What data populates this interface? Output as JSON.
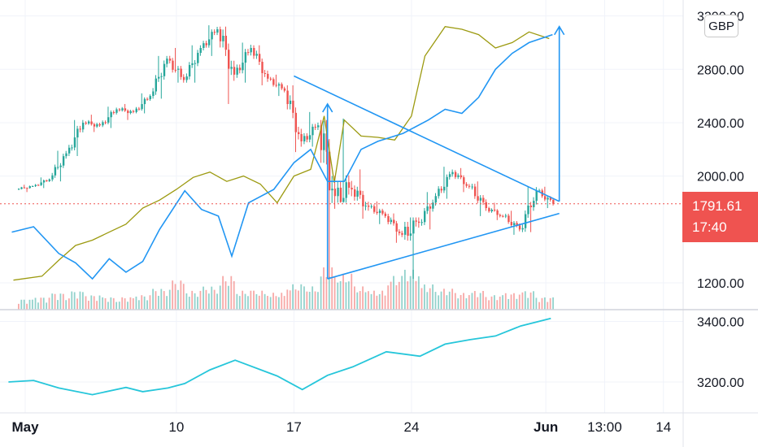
{
  "currency": "GBP",
  "last_price": {
    "value": "1791.61",
    "countdown": "17:40",
    "price": 1791.61
  },
  "colors": {
    "up": "#26a69a",
    "down": "#ef5350",
    "oscillator": "#2196f3",
    "olive": "#9c9a10",
    "trendline": "#2196f3",
    "lower_line": "#26c6da"
  },
  "chart_data": [
    {
      "type": "candlestick",
      "title": "",
      "price_axis": [
        {
          "label": "3200.00",
          "value": 3200,
          "partial": true
        },
        {
          "label": "2800.00",
          "value": 2800
        },
        {
          "label": "2400.00",
          "value": 2400
        },
        {
          "label": "2000.00",
          "value": 2000
        },
        {
          "label": "1200.00",
          "value": 1200
        }
      ],
      "time_axis": [
        {
          "label": "May",
          "day": 1,
          "bold": true
        },
        {
          "label": "10",
          "day": 10
        },
        {
          "label": "17",
          "day": 17
        },
        {
          "label": "24",
          "day": 24
        },
        {
          "label": "Jun",
          "day": 32,
          "bold": true
        },
        {
          "label": "13:00",
          "day": 35.5
        },
        {
          "label": "14",
          "day": 39
        }
      ],
      "candles": [
        {
          "day": 1,
          "o": 1900,
          "h": 1935,
          "l": 1880,
          "c": 1925
        },
        {
          "day": 2,
          "o": 1925,
          "h": 1990,
          "l": 1910,
          "c": 1975
        },
        {
          "day": 3,
          "o": 1975,
          "h": 2190,
          "l": 1960,
          "c": 2170
        },
        {
          "day": 4,
          "o": 2170,
          "h": 2420,
          "l": 2150,
          "c": 2400
        },
        {
          "day": 5,
          "o": 2400,
          "h": 2460,
          "l": 2330,
          "c": 2380
        },
        {
          "day": 6,
          "o": 2380,
          "h": 2520,
          "l": 2360,
          "c": 2500
        },
        {
          "day": 7,
          "o": 2500,
          "h": 2540,
          "l": 2420,
          "c": 2480
        },
        {
          "day": 8,
          "o": 2480,
          "h": 2620,
          "l": 2470,
          "c": 2600
        },
        {
          "day": 9,
          "o": 2600,
          "h": 2900,
          "l": 2580,
          "c": 2880
        },
        {
          "day": 10,
          "o": 2880,
          "h": 2960,
          "l": 2700,
          "c": 2720
        },
        {
          "day": 11,
          "o": 2720,
          "h": 2980,
          "l": 2700,
          "c": 2960
        },
        {
          "day": 12,
          "o": 2960,
          "h": 3130,
          "l": 2900,
          "c": 3100
        },
        {
          "day": 13,
          "o": 3100,
          "h": 3120,
          "l": 2540,
          "c": 2760
        },
        {
          "day": 14,
          "o": 2760,
          "h": 3000,
          "l": 2700,
          "c": 2960
        },
        {
          "day": 15,
          "o": 2960,
          "h": 2980,
          "l": 2680,
          "c": 2730
        },
        {
          "day": 16,
          "o": 2730,
          "h": 2760,
          "l": 2600,
          "c": 2640
        },
        {
          "day": 17,
          "o": 2640,
          "h": 2680,
          "l": 2180,
          "c": 2260
        },
        {
          "day": 18,
          "o": 2260,
          "h": 2480,
          "l": 2220,
          "c": 2380
        },
        {
          "day": 19,
          "o": 2380,
          "h": 2420,
          "l": 1230,
          "c": 1850
        },
        {
          "day": 20,
          "o": 1850,
          "h": 2440,
          "l": 1800,
          "c": 1900
        },
        {
          "day": 21,
          "o": 1900,
          "h": 2050,
          "l": 1680,
          "c": 1770
        },
        {
          "day": 22,
          "o": 1770,
          "h": 1810,
          "l": 1640,
          "c": 1700
        },
        {
          "day": 23,
          "o": 1700,
          "h": 1720,
          "l": 1500,
          "c": 1560
        },
        {
          "day": 24,
          "o": 1560,
          "h": 1690,
          "l": 1230,
          "c": 1650
        },
        {
          "day": 25,
          "o": 1650,
          "h": 1880,
          "l": 1600,
          "c": 1850
        },
        {
          "day": 26,
          "o": 1850,
          "h": 2070,
          "l": 1830,
          "c": 2030
        },
        {
          "day": 27,
          "o": 2030,
          "h": 2060,
          "l": 1880,
          "c": 1920
        },
        {
          "day": 28,
          "o": 1920,
          "h": 1960,
          "l": 1700,
          "c": 1760
        },
        {
          "day": 29,
          "o": 1760,
          "h": 1800,
          "l": 1670,
          "c": 1700
        },
        {
          "day": 30,
          "o": 1700,
          "h": 1740,
          "l": 1560,
          "c": 1600
        },
        {
          "day": 31,
          "o": 1600,
          "h": 1920,
          "l": 1580,
          "c": 1890
        },
        {
          "day": 32,
          "o": 1890,
          "h": 1920,
          "l": 1760,
          "c": 1792
        }
      ],
      "volumes": [
        0.25,
        0.3,
        0.4,
        0.45,
        0.35,
        0.3,
        0.3,
        0.35,
        0.5,
        0.7,
        0.45,
        0.55,
        0.8,
        0.45,
        0.45,
        0.4,
        0.6,
        0.55,
        1.0,
        0.85,
        0.55,
        0.45,
        0.8,
        0.95,
        0.6,
        0.5,
        0.4,
        0.45,
        0.35,
        0.4,
        0.45,
        0.3
      ],
      "olive_series": [
        {
          "day": 0.3,
          "v": 1220
        },
        {
          "day": 2,
          "v": 1250
        },
        {
          "day": 3,
          "v": 1370
        },
        {
          "day": 4,
          "v": 1480
        },
        {
          "day": 5,
          "v": 1520
        },
        {
          "day": 6,
          "v": 1580
        },
        {
          "day": 7,
          "v": 1640
        },
        {
          "day": 8,
          "v": 1760
        },
        {
          "day": 9,
          "v": 1820
        },
        {
          "day": 10,
          "v": 1900
        },
        {
          "day": 11,
          "v": 1990
        },
        {
          "day": 12,
          "v": 2030
        },
        {
          "day": 13,
          "v": 1960
        },
        {
          "day": 14,
          "v": 2000
        },
        {
          "day": 15,
          "v": 1940
        },
        {
          "day": 16,
          "v": 1800
        },
        {
          "day": 17,
          "v": 2000
        },
        {
          "day": 18,
          "v": 2050
        },
        {
          "day": 18.8,
          "v": 2450
        },
        {
          "day": 19.4,
          "v": 1950
        },
        {
          "day": 20,
          "v": 2420
        },
        {
          "day": 21,
          "v": 2300
        },
        {
          "day": 22,
          "v": 2290
        },
        {
          "day": 23,
          "v": 2270
        },
        {
          "day": 24,
          "v": 2450
        },
        {
          "day": 24.8,
          "v": 2900
        },
        {
          "day": 26,
          "v": 3120
        },
        {
          "day": 27,
          "v": 3100
        },
        {
          "day": 28,
          "v": 3060
        },
        {
          "day": 29,
          "v": 2960
        },
        {
          "day": 30,
          "v": 3000
        },
        {
          "day": 31,
          "v": 3080
        },
        {
          "day": 32.2,
          "v": 3030
        }
      ],
      "oscillator_series": [
        {
          "day": 0.2,
          "v": 1580
        },
        {
          "day": 1.5,
          "v": 1620
        },
        {
          "day": 3,
          "v": 1420
        },
        {
          "day": 4,
          "v": 1350
        },
        {
          "day": 5,
          "v": 1230
        },
        {
          "day": 6,
          "v": 1380
        },
        {
          "day": 7,
          "v": 1280
        },
        {
          "day": 8,
          "v": 1360
        },
        {
          "day": 9,
          "v": 1600
        },
        {
          "day": 10.5,
          "v": 1890
        },
        {
          "day": 11.5,
          "v": 1750
        },
        {
          "day": 12.5,
          "v": 1700
        },
        {
          "day": 13.3,
          "v": 1400
        },
        {
          "day": 14.3,
          "v": 1800
        },
        {
          "day": 15.8,
          "v": 1900
        },
        {
          "day": 17,
          "v": 2100
        },
        {
          "day": 18,
          "v": 2200
        },
        {
          "day": 19,
          "v": 1960
        },
        {
          "day": 20,
          "v": 1960
        },
        {
          "day": 21,
          "v": 2200
        },
        {
          "day": 22,
          "v": 2260
        },
        {
          "day": 23.5,
          "v": 2320
        },
        {
          "day": 25,
          "v": 2420
        },
        {
          "day": 26,
          "v": 2500
        },
        {
          "day": 27,
          "v": 2470
        },
        {
          "day": 28,
          "v": 2590
        },
        {
          "day": 29,
          "v": 2800
        },
        {
          "day": 30,
          "v": 2920
        },
        {
          "day": 31,
          "v": 3000
        },
        {
          "day": 32.4,
          "v": 3060
        }
      ],
      "drawings": {
        "upper_trendline": [
          {
            "day": 17,
            "v": 2750
          },
          {
            "day": 32.8,
            "v": 1810
          }
        ],
        "lower_trendline": [
          {
            "day": 19,
            "v": 1230
          },
          {
            "day": 32.8,
            "v": 1720
          }
        ],
        "left_measure_arrow": [
          {
            "day": 19,
            "v": 1230
          },
          {
            "day": 19,
            "v": 2540
          }
        ],
        "right_measure_arrow": [
          {
            "day": 32.8,
            "v": 1810
          },
          {
            "day": 32.8,
            "v": 3120
          }
        ]
      }
    },
    {
      "type": "line",
      "title": "",
      "price_axis": [
        {
          "label": "3400.00",
          "value": 3400
        },
        {
          "label": "3200.00",
          "value": 3200
        }
      ],
      "series": [
        {
          "values": [
            {
              "day": 0,
              "v": 3200
            },
            {
              "day": 1.5,
              "v": 3205
            },
            {
              "day": 3,
              "v": 3180
            },
            {
              "day": 5,
              "v": 3158
            },
            {
              "day": 7,
              "v": 3182
            },
            {
              "day": 8,
              "v": 3168
            },
            {
              "day": 9.5,
              "v": 3180
            },
            {
              "day": 10.5,
              "v": 3195
            },
            {
              "day": 12,
              "v": 3240
            },
            {
              "day": 13.5,
              "v": 3272
            },
            {
              "day": 16,
              "v": 3220
            },
            {
              "day": 17.5,
              "v": 3175
            },
            {
              "day": 19,
              "v": 3222
            },
            {
              "day": 20.5,
              "v": 3250
            },
            {
              "day": 22.5,
              "v": 3300
            },
            {
              "day": 24.5,
              "v": 3285
            },
            {
              "day": 26,
              "v": 3325
            },
            {
              "day": 27.5,
              "v": 3340
            },
            {
              "day": 29,
              "v": 3352
            },
            {
              "day": 30.5,
              "v": 3385
            },
            {
              "day": 32.3,
              "v": 3410
            }
          ]
        }
      ]
    }
  ]
}
